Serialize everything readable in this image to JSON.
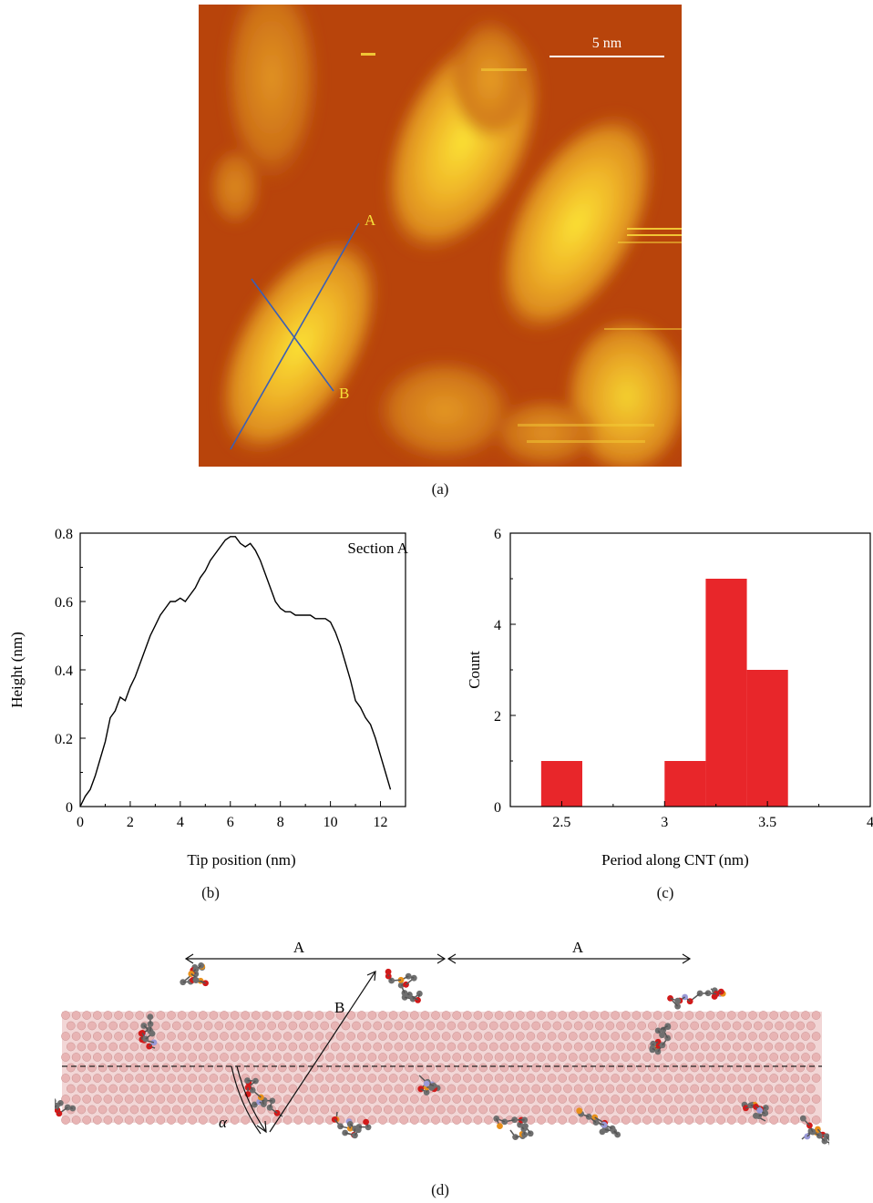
{
  "panel_a": {
    "caption": "(a)",
    "scale_bar_label": "5 nm",
    "label_a": "A",
    "label_b": "B",
    "colors": {
      "background": "#b33e08",
      "mid": "#d8771a",
      "bright": "#f6d22e"
    }
  },
  "panel_b": {
    "caption": "(b)"
  },
  "panel_c": {
    "caption": "(c)"
  },
  "panel_d": {
    "caption": "(d)",
    "label_a1": "A",
    "label_a2": "A",
    "label_b": "B",
    "label_alpha": "α",
    "colors": {
      "nanotube": "#e8b4b4",
      "carbon": "#6f6f6f",
      "oxygen": "#d11a1a",
      "phosphorus": "#e8901a",
      "nitrogen": "#9a9ad8"
    }
  },
  "chart_data": [
    {
      "type": "line",
      "annotation": "Section A",
      "xlabel": "Tip position (nm)",
      "ylabel": "Height (nm)",
      "xlim": [
        0,
        13
      ],
      "ylim": [
        0,
        0.8
      ],
      "xticks": [
        "0",
        "2",
        "4",
        "6",
        "8",
        "10",
        "12"
      ],
      "yticks": [
        "0",
        "0.2",
        "0.4",
        "0.6",
        "0.8"
      ],
      "x": [
        0,
        0.2,
        0.4,
        0.6,
        0.8,
        1.0,
        1.2,
        1.4,
        1.6,
        1.8,
        2.0,
        2.2,
        2.4,
        2.6,
        2.8,
        3.0,
        3.2,
        3.4,
        3.6,
        3.8,
        4.0,
        4.2,
        4.4,
        4.6,
        4.8,
        5.0,
        5.2,
        5.4,
        5.6,
        5.8,
        6.0,
        6.2,
        6.4,
        6.6,
        6.8,
        7.0,
        7.2,
        7.4,
        7.6,
        7.8,
        8.0,
        8.2,
        8.4,
        8.6,
        8.8,
        9.0,
        9.2,
        9.4,
        9.6,
        9.8,
        10.0,
        10.2,
        10.4,
        10.6,
        10.8,
        11.0,
        11.2,
        11.4,
        11.6,
        11.8,
        12.0,
        12.2,
        12.4
      ],
      "y": [
        0.0,
        0.03,
        0.05,
        0.09,
        0.14,
        0.19,
        0.26,
        0.28,
        0.32,
        0.31,
        0.35,
        0.38,
        0.42,
        0.46,
        0.5,
        0.53,
        0.56,
        0.58,
        0.6,
        0.6,
        0.61,
        0.6,
        0.62,
        0.64,
        0.67,
        0.69,
        0.72,
        0.74,
        0.76,
        0.78,
        0.79,
        0.79,
        0.77,
        0.76,
        0.77,
        0.75,
        0.72,
        0.68,
        0.64,
        0.6,
        0.58,
        0.57,
        0.57,
        0.56,
        0.56,
        0.56,
        0.56,
        0.55,
        0.55,
        0.55,
        0.54,
        0.51,
        0.47,
        0.42,
        0.37,
        0.31,
        0.29,
        0.26,
        0.24,
        0.2,
        0.15,
        0.1,
        0.05
      ]
    },
    {
      "type": "bar",
      "xlabel": "Period along CNT (nm)",
      "ylabel": "Count",
      "xlim": [
        2.25,
        4.0
      ],
      "ylim": [
        0,
        6
      ],
      "xticks": [
        "2.5",
        "3",
        "3.5",
        "4"
      ],
      "yticks": [
        "0",
        "2",
        "4",
        "6"
      ],
      "bin_width": 0.2,
      "bins": [
        2.5,
        3.1,
        3.3,
        3.5
      ],
      "values": [
        1,
        1,
        5,
        3
      ],
      "color": "#e8262a"
    }
  ]
}
